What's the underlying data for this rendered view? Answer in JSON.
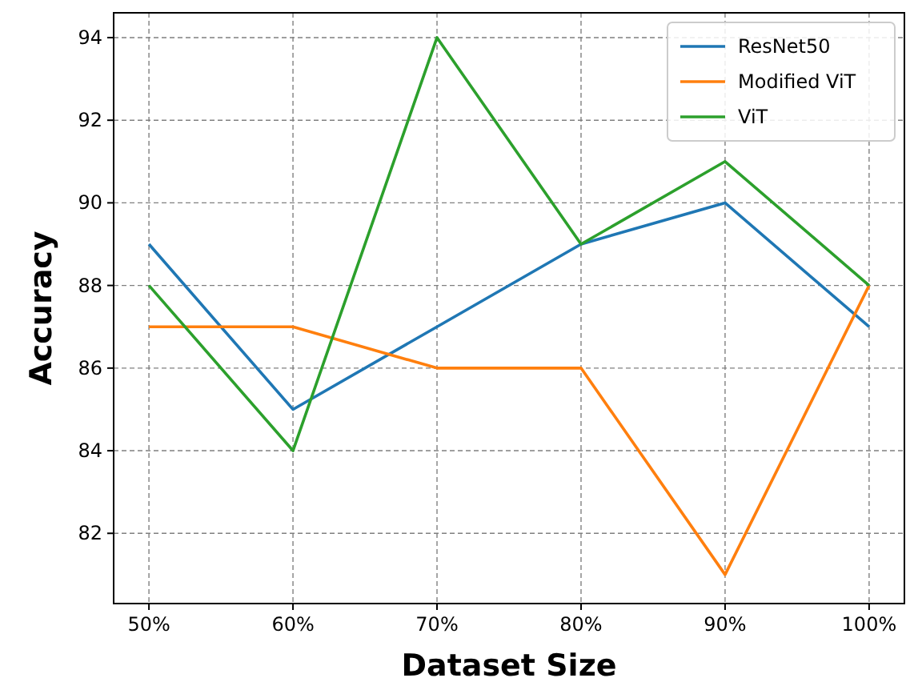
{
  "chart_data": {
    "type": "line",
    "xlabel": "Dataset Size",
    "ylabel": "Accuracy",
    "categories": [
      "50%",
      "60%",
      "70%",
      "80%",
      "90%",
      "100%"
    ],
    "series": [
      {
        "name": "ResNet50",
        "color": "#1f77b4",
        "values": [
          89,
          85,
          87,
          89,
          90,
          87
        ]
      },
      {
        "name": "Modified ViT",
        "color": "#ff7f0e",
        "values": [
          87,
          87,
          86,
          86,
          81,
          88
        ]
      },
      {
        "name": "ViT",
        "color": "#2ca02c",
        "values": [
          88,
          84,
          94,
          89,
          91,
          88
        ]
      }
    ],
    "ylim": [
      80.3,
      94.6
    ],
    "yticks": [
      82,
      84,
      86,
      88,
      90,
      92,
      94
    ],
    "grid": true,
    "legend": "top right"
  }
}
